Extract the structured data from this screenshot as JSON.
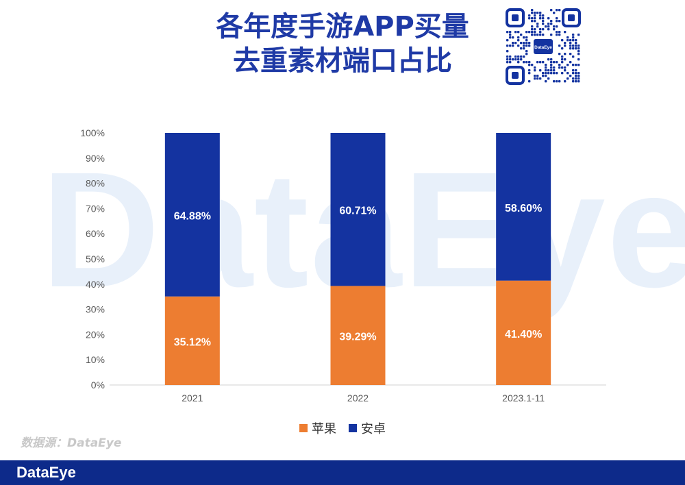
{
  "watermark": "DataEye",
  "title": {
    "line1": "各年度手游APP买量",
    "line2": "去重素材端口占比"
  },
  "source": "数据源：DataEye",
  "footer": {
    "logo": "DataEye"
  },
  "qr": {
    "center_label": "DataEye"
  },
  "colors": {
    "apple": "#ed7d31",
    "android": "#1433a0",
    "title": "#1f3aa6",
    "footer": "#0d2a8a"
  },
  "chart_data": {
    "type": "bar",
    "stacked": true,
    "categories": [
      "2021",
      "2022",
      "2023.1-11"
    ],
    "series": [
      {
        "name": "苹果",
        "color": "#ed7d31",
        "values": [
          35.12,
          39.29,
          41.4
        ],
        "labels": [
          "35.12%",
          "39.29%",
          "41.40%"
        ]
      },
      {
        "name": "安卓",
        "color": "#1433a0",
        "values": [
          64.88,
          60.71,
          58.6
        ],
        "labels": [
          "64.88%",
          "60.71%",
          "58.60%"
        ]
      }
    ],
    "ylim": [
      0,
      100
    ],
    "yticks": [
      "0%",
      "10%",
      "20%",
      "30%",
      "40%",
      "50%",
      "60%",
      "70%",
      "80%",
      "90%",
      "100%"
    ],
    "legend": "bottom-center"
  }
}
